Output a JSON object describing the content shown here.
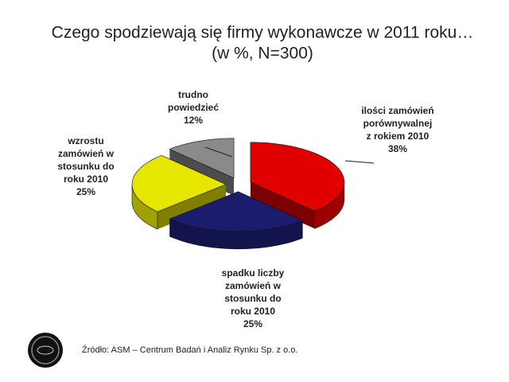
{
  "chart_data": {
    "type": "pie3d",
    "title": "Czego spodziewają się firmy wykonawcze w 2011 roku…",
    "subtitle": "(w %, N=300)",
    "categories": [
      [
        "ilości zamówień",
        "porównywalnej",
        "z rokiem 2010"
      ],
      [
        "spadku liczby",
        "zamówień w",
        "stosunku do",
        "roku 2010"
      ],
      [
        "wzrostu",
        "zamówień w",
        "stosunku do",
        "roku 2010"
      ],
      [
        "trudno",
        "powiedzieć"
      ]
    ],
    "values": [
      38,
      25,
      25,
      12
    ],
    "value_labels": [
      "38%",
      "25%",
      "25%",
      "12%"
    ],
    "colors": [
      "#e00000",
      "#1c1c6e",
      "#e6e600",
      "#8a8a8a"
    ],
    "source": "Źródło: ASM – Centrum Badań i Analiz Rynku Sp. z o.o."
  }
}
